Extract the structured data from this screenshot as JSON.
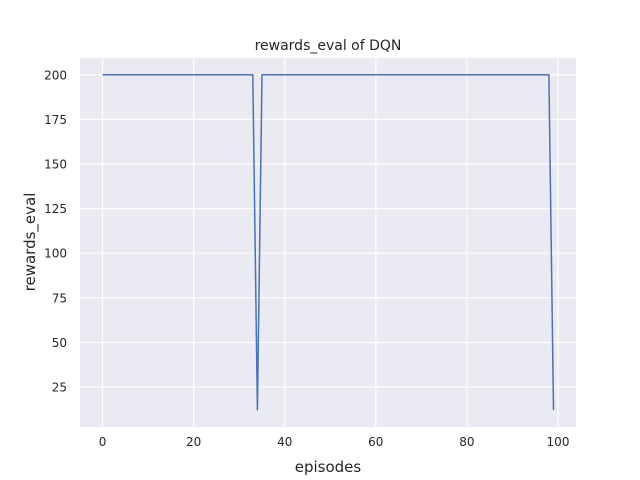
{
  "chart_data": {
    "type": "line",
    "title": "rewards_eval of DQN",
    "xlabel": "episodes",
    "ylabel": "rewards_eval",
    "xlim": [
      -4.95,
      103.95
    ],
    "ylim": [
      2.6,
      209.4
    ],
    "xticks": [
      0,
      20,
      40,
      60,
      80,
      100
    ],
    "yticks": [
      25,
      50,
      75,
      100,
      125,
      150,
      175,
      200
    ],
    "grid": true,
    "colors": {
      "background": "#EAEAF2",
      "line": "#4C72B0",
      "grid": "#FFFFFF"
    },
    "x": [
      0,
      1,
      2,
      3,
      4,
      5,
      6,
      7,
      8,
      9,
      10,
      11,
      12,
      13,
      14,
      15,
      16,
      17,
      18,
      19,
      20,
      21,
      22,
      23,
      24,
      25,
      26,
      27,
      28,
      29,
      30,
      31,
      32,
      33,
      34,
      35,
      36,
      37,
      38,
      39,
      40,
      41,
      42,
      43,
      44,
      45,
      46,
      47,
      48,
      49,
      50,
      51,
      52,
      53,
      54,
      55,
      56,
      57,
      58,
      59,
      60,
      61,
      62,
      63,
      64,
      65,
      66,
      67,
      68,
      69,
      70,
      71,
      72,
      73,
      74,
      75,
      76,
      77,
      78,
      79,
      80,
      81,
      82,
      83,
      84,
      85,
      86,
      87,
      88,
      89,
      90,
      91,
      92,
      93,
      94,
      95,
      96,
      97,
      98,
      99
    ],
    "y": [
      200,
      200,
      200,
      200,
      200,
      200,
      200,
      200,
      200,
      200,
      200,
      200,
      200,
      200,
      200,
      200,
      200,
      200,
      200,
      200,
      200,
      200,
      200,
      200,
      200,
      200,
      200,
      200,
      200,
      200,
      200,
      200,
      200,
      200,
      12,
      200,
      200,
      200,
      200,
      200,
      200,
      200,
      200,
      200,
      200,
      200,
      200,
      200,
      200,
      200,
      200,
      200,
      200,
      200,
      200,
      200,
      200,
      200,
      200,
      200,
      200,
      200,
      200,
      200,
      200,
      200,
      200,
      200,
      200,
      200,
      200,
      200,
      200,
      200,
      200,
      200,
      200,
      200,
      200,
      200,
      200,
      200,
      200,
      200,
      200,
      200,
      200,
      200,
      200,
      200,
      200,
      200,
      200,
      200,
      200,
      200,
      200,
      200,
      200,
      12
    ]
  }
}
